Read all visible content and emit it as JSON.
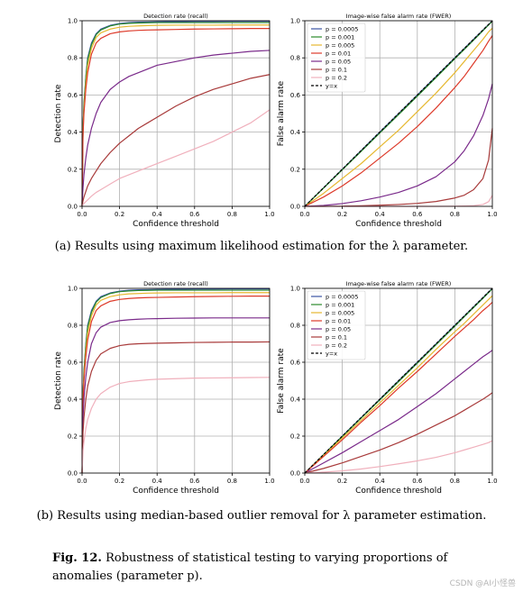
{
  "panels": {
    "a": {
      "caption": "(a) Results using maximum likelihood estimation for the λ parameter.",
      "left_title": "Detection rate (recall)",
      "right_title": "Image-wise false alarm rate (FWER)"
    },
    "b": {
      "caption": "(b) Results using median-based outlier removal for λ parameter estimation.",
      "left_title": "Detection rate (recall)",
      "right_title": "Image-wise false alarm rate (FWER)"
    }
  },
  "figure_caption": {
    "label": "Fig. 12.",
    "text": "Robustness of statistical testing to varying proportions of anomalies (parameter p)."
  },
  "watermark": "CSDN @AI小怪兽",
  "chart_data": [
    {
      "id": "a-left",
      "type": "line",
      "title": "Detection rate (recall)",
      "xlabel": "Confidence threshold",
      "ylabel": "Detection rate",
      "xlim": [
        0,
        1
      ],
      "ylim": [
        0,
        1
      ],
      "xticks": [
        "0.0",
        "0.2",
        "0.4",
        "0.6",
        "0.8",
        "1.0"
      ],
      "yticks": [
        "0.0",
        "0.2",
        "0.4",
        "0.6",
        "0.8",
        "1.0"
      ],
      "grid": true,
      "x": [
        0,
        0.005,
        0.01,
        0.02,
        0.03,
        0.05,
        0.075,
        0.1,
        0.15,
        0.2,
        0.25,
        0.3,
        0.35,
        0.4,
        0.5,
        0.6,
        0.7,
        0.8,
        0.9,
        1.0
      ],
      "series": [
        {
          "name": "p = 0.0005",
          "color": "#3a53a4",
          "values": [
            0,
            0.42,
            0.55,
            0.7,
            0.8,
            0.88,
            0.93,
            0.955,
            0.975,
            0.985,
            0.99,
            0.992,
            0.993,
            0.994,
            0.995,
            0.996,
            0.996,
            0.997,
            0.997,
            0.997
          ]
        },
        {
          "name": "p = 0.001",
          "color": "#2a8a2a",
          "values": [
            0,
            0.42,
            0.55,
            0.69,
            0.79,
            0.87,
            0.925,
            0.95,
            0.972,
            0.982,
            0.986,
            0.988,
            0.989,
            0.99,
            0.99,
            0.99,
            0.99,
            0.99,
            0.99,
            0.99
          ]
        },
        {
          "name": "p = 0.005",
          "color": "#e6b830",
          "values": [
            0,
            0.4,
            0.52,
            0.66,
            0.76,
            0.85,
            0.91,
            0.935,
            0.955,
            0.965,
            0.97,
            0.972,
            0.974,
            0.975,
            0.976,
            0.976,
            0.976,
            0.977,
            0.977,
            0.977
          ]
        },
        {
          "name": "p = 0.01",
          "color": "#dd3a2a",
          "values": [
            0,
            0.38,
            0.5,
            0.63,
            0.72,
            0.82,
            0.88,
            0.905,
            0.93,
            0.94,
            0.945,
            0.948,
            0.95,
            0.951,
            0.953,
            0.955,
            0.956,
            0.957,
            0.958,
            0.958
          ]
        },
        {
          "name": "p = 0.05",
          "color": "#7a2a8a",
          "values": [
            0,
            0.1,
            0.17,
            0.26,
            0.33,
            0.42,
            0.5,
            0.56,
            0.63,
            0.67,
            0.7,
            0.72,
            0.74,
            0.76,
            0.78,
            0.8,
            0.815,
            0.825,
            0.835,
            0.84
          ]
        },
        {
          "name": "p = 0.1",
          "color": "#a83a3a",
          "values": [
            0,
            0.03,
            0.05,
            0.08,
            0.11,
            0.15,
            0.19,
            0.23,
            0.29,
            0.34,
            0.38,
            0.42,
            0.45,
            0.48,
            0.54,
            0.59,
            0.63,
            0.66,
            0.69,
            0.71
          ]
        },
        {
          "name": "p = 0.2",
          "color": "#f0b0bc",
          "values": [
            0,
            0.01,
            0.015,
            0.025,
            0.035,
            0.055,
            0.075,
            0.09,
            0.12,
            0.15,
            0.17,
            0.19,
            0.21,
            0.23,
            0.27,
            0.31,
            0.35,
            0.4,
            0.45,
            0.52
          ]
        }
      ]
    },
    {
      "id": "a-right",
      "type": "line",
      "title": "Image-wise false alarm rate (FWER)",
      "xlabel": "Confidence threshold",
      "ylabel": "False alarm rate",
      "xlim": [
        0,
        1
      ],
      "ylim": [
        0,
        1
      ],
      "xticks": [
        "0.0",
        "0.2",
        "0.4",
        "0.6",
        "0.8",
        "1.0"
      ],
      "yticks": [
        "0.0",
        "0.2",
        "0.4",
        "0.6",
        "0.8",
        "1.0"
      ],
      "grid": true,
      "legend": "top-left",
      "x": [
        0,
        0.1,
        0.2,
        0.3,
        0.4,
        0.5,
        0.6,
        0.7,
        0.8,
        0.85,
        0.9,
        0.95,
        0.98,
        1.0
      ],
      "series": [
        {
          "name": "p = 0.0005",
          "color": "#3a53a4",
          "values": [
            0,
            0.1,
            0.2,
            0.3,
            0.4,
            0.5,
            0.6,
            0.7,
            0.8,
            0.85,
            0.9,
            0.95,
            0.98,
            1.0
          ]
        },
        {
          "name": "p = 0.001",
          "color": "#2a8a2a",
          "values": [
            0,
            0.098,
            0.197,
            0.296,
            0.395,
            0.494,
            0.594,
            0.694,
            0.795,
            0.845,
            0.895,
            0.946,
            0.977,
            0.997
          ]
        },
        {
          "name": "p = 0.005",
          "color": "#e6b830",
          "values": [
            0,
            0.07,
            0.15,
            0.23,
            0.32,
            0.41,
            0.51,
            0.61,
            0.72,
            0.78,
            0.84,
            0.9,
            0.94,
            0.96
          ]
        },
        {
          "name": "p = 0.01",
          "color": "#dd3a2a",
          "values": [
            0,
            0.05,
            0.11,
            0.18,
            0.26,
            0.34,
            0.43,
            0.53,
            0.64,
            0.7,
            0.77,
            0.84,
            0.89,
            0.92
          ]
        },
        {
          "name": "p = 0.05",
          "color": "#7a2a8a",
          "values": [
            0,
            0.005,
            0.015,
            0.03,
            0.05,
            0.075,
            0.11,
            0.16,
            0.24,
            0.3,
            0.38,
            0.49,
            0.58,
            0.66
          ]
        },
        {
          "name": "p = 0.1",
          "color": "#a83a3a",
          "values": [
            0,
            0,
            0.001,
            0.003,
            0.006,
            0.01,
            0.016,
            0.026,
            0.045,
            0.06,
            0.09,
            0.15,
            0.25,
            0.42
          ]
        },
        {
          "name": "p = 0.2",
          "color": "#f0b0bc",
          "values": [
            0,
            0,
            0,
            0,
            0,
            0,
            0,
            0,
            0.001,
            0.002,
            0.004,
            0.01,
            0.025,
            0.06
          ]
        },
        {
          "name": "y=x",
          "color": "#000000",
          "dashed": true,
          "values": [
            0,
            0.1,
            0.2,
            0.3,
            0.4,
            0.5,
            0.6,
            0.7,
            0.8,
            0.85,
            0.9,
            0.95,
            0.98,
            1.0
          ]
        }
      ]
    },
    {
      "id": "b-left",
      "type": "line",
      "title": "Detection rate (recall)",
      "xlabel": "Confidence threshold",
      "ylabel": "Detection rate",
      "xlim": [
        0,
        1
      ],
      "ylim": [
        0,
        1
      ],
      "xticks": [
        "0.0",
        "0.2",
        "0.4",
        "0.6",
        "0.8",
        "1.0"
      ],
      "yticks": [
        "0.0",
        "0.2",
        "0.4",
        "0.6",
        "0.8",
        "1.0"
      ],
      "grid": true,
      "x": [
        0,
        0.005,
        0.01,
        0.02,
        0.03,
        0.05,
        0.075,
        0.1,
        0.15,
        0.2,
        0.25,
        0.3,
        0.35,
        0.4,
        0.5,
        0.6,
        0.7,
        0.8,
        0.9,
        1.0
      ],
      "series": [
        {
          "name": "p = 0.0005",
          "color": "#3a53a4",
          "values": [
            0,
            0.42,
            0.55,
            0.7,
            0.8,
            0.88,
            0.93,
            0.955,
            0.975,
            0.985,
            0.99,
            0.992,
            0.993,
            0.994,
            0.995,
            0.996,
            0.996,
            0.997,
            0.997,
            0.997
          ]
        },
        {
          "name": "p = 0.001",
          "color": "#2a8a2a",
          "values": [
            0,
            0.42,
            0.55,
            0.69,
            0.79,
            0.87,
            0.925,
            0.95,
            0.972,
            0.982,
            0.986,
            0.988,
            0.989,
            0.99,
            0.99,
            0.99,
            0.99,
            0.99,
            0.99,
            0.99
          ]
        },
        {
          "name": "p = 0.005",
          "color": "#e6b830",
          "values": [
            0,
            0.4,
            0.52,
            0.66,
            0.76,
            0.85,
            0.91,
            0.935,
            0.955,
            0.965,
            0.97,
            0.972,
            0.974,
            0.975,
            0.976,
            0.976,
            0.976,
            0.977,
            0.977,
            0.977
          ]
        },
        {
          "name": "p = 0.01",
          "color": "#dd3a2a",
          "values": [
            0,
            0.38,
            0.5,
            0.63,
            0.72,
            0.82,
            0.88,
            0.905,
            0.93,
            0.94,
            0.945,
            0.948,
            0.95,
            0.951,
            0.953,
            0.955,
            0.956,
            0.957,
            0.958,
            0.958
          ]
        },
        {
          "name": "p = 0.05",
          "color": "#7a2a8a",
          "values": [
            0,
            0.3,
            0.4,
            0.52,
            0.6,
            0.7,
            0.76,
            0.79,
            0.815,
            0.825,
            0.83,
            0.833,
            0.835,
            0.836,
            0.838,
            0.839,
            0.84,
            0.84,
            0.84,
            0.84
          ]
        },
        {
          "name": "p = 0.1",
          "color": "#a83a3a",
          "values": [
            0,
            0.22,
            0.3,
            0.4,
            0.47,
            0.55,
            0.61,
            0.645,
            0.675,
            0.69,
            0.697,
            0.7,
            0.702,
            0.703,
            0.705,
            0.707,
            0.708,
            0.709,
            0.709,
            0.71
          ]
        },
        {
          "name": "p = 0.2",
          "color": "#f0b0bc",
          "values": [
            0,
            0.12,
            0.17,
            0.24,
            0.29,
            0.35,
            0.4,
            0.43,
            0.465,
            0.485,
            0.495,
            0.5,
            0.505,
            0.508,
            0.511,
            0.514,
            0.515,
            0.516,
            0.517,
            0.518
          ]
        }
      ]
    },
    {
      "id": "b-right",
      "type": "line",
      "title": "Image-wise false alarm rate (FWER)",
      "xlabel": "Confidence threshold",
      "ylabel": "False alarm rate",
      "xlim": [
        0,
        1
      ],
      "ylim": [
        0,
        1
      ],
      "xticks": [
        "0.0",
        "0.2",
        "0.4",
        "0.6",
        "0.8",
        "1.0"
      ],
      "yticks": [
        "0.0",
        "0.2",
        "0.4",
        "0.6",
        "0.8",
        "1.0"
      ],
      "grid": true,
      "legend": "top-left",
      "x": [
        0,
        0.1,
        0.2,
        0.3,
        0.4,
        0.5,
        0.6,
        0.7,
        0.8,
        0.85,
        0.9,
        0.95,
        0.98,
        1.0
      ],
      "series": [
        {
          "name": "p = 0.0005",
          "color": "#3a53a4",
          "values": [
            0,
            0.1,
            0.2,
            0.3,
            0.4,
            0.5,
            0.6,
            0.7,
            0.8,
            0.85,
            0.9,
            0.95,
            0.98,
            1.0
          ]
        },
        {
          "name": "p = 0.001",
          "color": "#2a8a2a",
          "values": [
            0,
            0.099,
            0.198,
            0.297,
            0.396,
            0.495,
            0.595,
            0.695,
            0.795,
            0.846,
            0.896,
            0.946,
            0.977,
            0.997
          ]
        },
        {
          "name": "p = 0.005",
          "color": "#e6b830",
          "values": [
            0,
            0.096,
            0.19,
            0.285,
            0.38,
            0.475,
            0.57,
            0.67,
            0.765,
            0.81,
            0.86,
            0.91,
            0.94,
            0.96
          ]
        },
        {
          "name": "p = 0.01",
          "color": "#dd3a2a",
          "values": [
            0,
            0.09,
            0.18,
            0.275,
            0.365,
            0.46,
            0.55,
            0.645,
            0.74,
            0.785,
            0.83,
            0.88,
            0.905,
            0.925
          ]
        },
        {
          "name": "p = 0.05",
          "color": "#7a2a8a",
          "values": [
            0,
            0.055,
            0.11,
            0.17,
            0.23,
            0.29,
            0.36,
            0.43,
            0.51,
            0.55,
            0.59,
            0.63,
            0.65,
            0.665
          ]
        },
        {
          "name": "p = 0.1",
          "color": "#a83a3a",
          "values": [
            0,
            0.025,
            0.055,
            0.09,
            0.125,
            0.165,
            0.21,
            0.26,
            0.31,
            0.34,
            0.37,
            0.4,
            0.42,
            0.435
          ]
        },
        {
          "name": "p = 0.2",
          "color": "#f0b0bc",
          "values": [
            0,
            0.005,
            0.012,
            0.022,
            0.035,
            0.05,
            0.066,
            0.085,
            0.11,
            0.125,
            0.14,
            0.155,
            0.165,
            0.175
          ]
        },
        {
          "name": "y=x",
          "color": "#000000",
          "dashed": true,
          "values": [
            0,
            0.1,
            0.2,
            0.3,
            0.4,
            0.5,
            0.6,
            0.7,
            0.8,
            0.85,
            0.9,
            0.95,
            0.98,
            1.0
          ]
        }
      ]
    }
  ]
}
